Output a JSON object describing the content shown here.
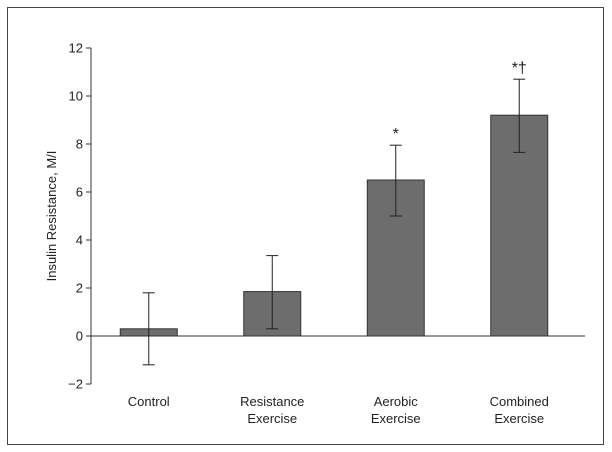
{
  "chart_data": {
    "type": "bar",
    "title": "",
    "xlabel": "",
    "ylabel": "Insulin Resistance, M/I",
    "ylim": [
      -2,
      12
    ],
    "yticks": [
      -2,
      0,
      2,
      4,
      6,
      8,
      10,
      12
    ],
    "ytick_labels": [
      "−2",
      "0",
      "2",
      "4",
      "6",
      "8",
      "10",
      "12"
    ],
    "grid": false,
    "categories": [
      {
        "line1": "Control",
        "line2": ""
      },
      {
        "line1": "Resistance",
        "line2": "Exercise"
      },
      {
        "line1": "Aerobic",
        "line2": "Exercise"
      },
      {
        "line1": "Combined",
        "line2": "Exercise"
      }
    ],
    "values": [
      0.3,
      1.85,
      6.5,
      9.2
    ],
    "error_low": [
      -1.2,
      0.3,
      5.0,
      7.65
    ],
    "error_high": [
      1.8,
      3.35,
      7.95,
      10.7
    ],
    "annotations": [
      "",
      "",
      "*",
      "*†"
    ],
    "bar_color": "#6d6d6d"
  }
}
